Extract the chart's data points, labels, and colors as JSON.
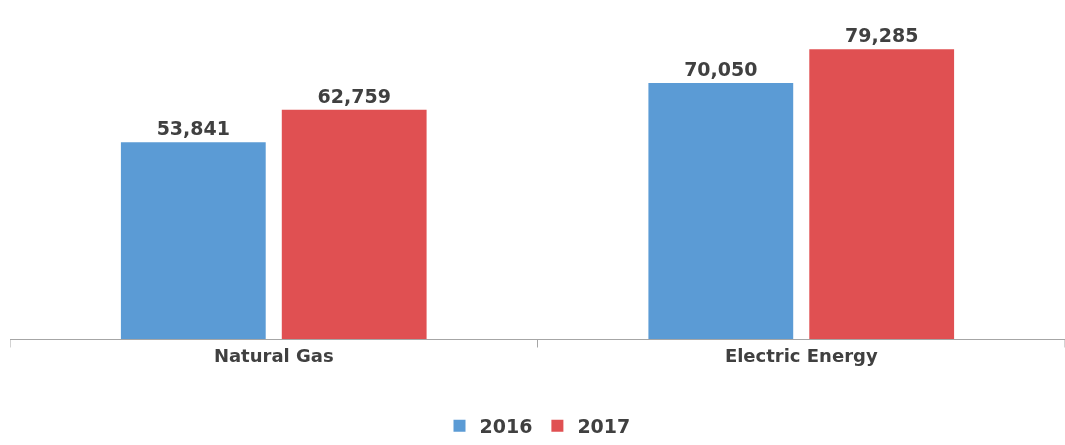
{
  "chart_data": {
    "type": "bar",
    "categories": [
      "Natural Gas",
      "Electric Energy"
    ],
    "series": [
      {
        "name": "2016",
        "color": "#5b9bd5",
        "values": [
          53841,
          70050
        ],
        "value_labels": [
          "53,841",
          "70,050"
        ]
      },
      {
        "name": "2017",
        "color": "#e05052",
        "values": [
          62759,
          79285
        ],
        "value_labels": [
          "62,759",
          "79,285"
        ]
      }
    ],
    "legend": "bottom"
  }
}
